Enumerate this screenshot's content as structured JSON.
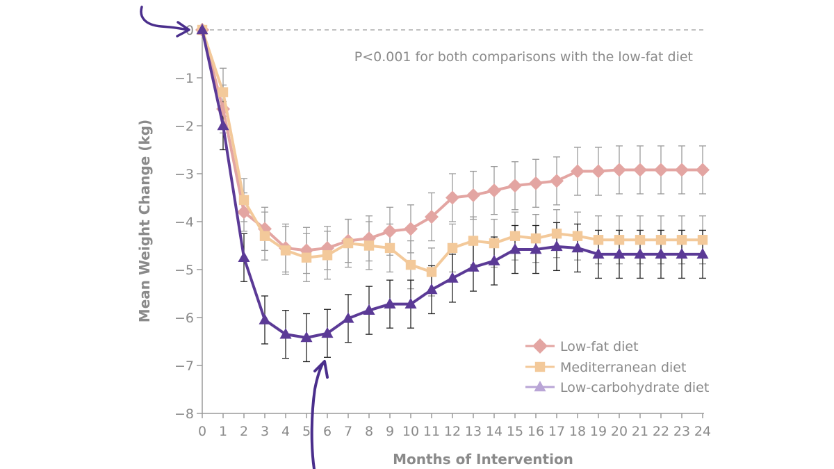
{
  "chart_data": {
    "type": "line",
    "title": "",
    "xlabel": "Months of Intervention",
    "ylabel": "Mean Weight Change (kg)",
    "annotation": "P<0.001 for both comparisons with the low-fat diet",
    "x": [
      0,
      1,
      2,
      3,
      4,
      5,
      6,
      7,
      8,
      9,
      10,
      11,
      12,
      13,
      14,
      15,
      16,
      17,
      18,
      19,
      20,
      21,
      22,
      23,
      24
    ],
    "xlim": [
      0,
      24
    ],
    "ylim": [
      -8,
      0
    ],
    "xticks": [
      "0",
      "1",
      "2",
      "3",
      "4",
      "5",
      "6",
      "7",
      "8",
      "9",
      "10",
      "11",
      "12",
      "13",
      "14",
      "15",
      "16",
      "17",
      "18",
      "19",
      "20",
      "21",
      "22",
      "23",
      "24"
    ],
    "yticks": [
      "0",
      "−1",
      "−2",
      "−3",
      "−4",
      "−5",
      "−6",
      "−7",
      "−8"
    ],
    "ytick_values": [
      0,
      -1,
      -2,
      -3,
      -4,
      -5,
      -6,
      -7,
      -8
    ],
    "reference_line": 0,
    "legend_position": "bottom-right",
    "series": [
      {
        "name": "Low-fat diet",
        "marker": "diamond",
        "color": "#e3a5a2",
        "values": [
          0,
          -1.65,
          -3.8,
          -4.15,
          -4.55,
          -4.6,
          -4.55,
          -4.4,
          -4.35,
          -4.2,
          -4.15,
          -3.9,
          -3.5,
          -3.45,
          -3.35,
          -3.25,
          -3.2,
          -3.15,
          -2.95,
          -2.95,
          -2.92,
          -2.92,
          -2.92,
          -2.92,
          -2.92
        ],
        "errors": [
          0.5,
          0.5,
          0.4,
          0.45,
          0.5,
          0.48,
          0.45,
          0.45,
          0.47,
          0.5,
          0.5,
          0.5,
          0.5,
          0.5,
          0.5,
          0.5,
          0.5,
          0.5,
          0.5,
          0.5,
          0.5,
          0.5,
          0.5,
          0.5,
          0.5
        ]
      },
      {
        "name": "Mediterranean diet",
        "marker": "square",
        "color": "#f3c99a",
        "values": [
          0,
          -1.3,
          -3.55,
          -4.3,
          -4.6,
          -4.75,
          -4.7,
          -4.45,
          -4.5,
          -4.55,
          -4.9,
          -5.05,
          -4.55,
          -4.4,
          -4.45,
          -4.3,
          -4.35,
          -4.25,
          -4.3,
          -4.38,
          -4.38,
          -4.38,
          -4.38,
          -4.38,
          -4.38
        ],
        "errors": [
          0.5,
          0.5,
          0.45,
          0.5,
          0.5,
          0.5,
          0.5,
          0.5,
          0.5,
          0.5,
          0.5,
          0.5,
          0.5,
          0.5,
          0.5,
          0.5,
          0.5,
          0.5,
          0.5,
          0.5,
          0.5,
          0.5,
          0.5,
          0.5,
          0.5
        ]
      },
      {
        "name": "Low-carbohydrate diet",
        "marker": "triangle",
        "color": "#5b3a96",
        "legend_color": "#b9a5d6",
        "values": [
          0,
          -2,
          -4.75,
          -6.05,
          -6.35,
          -6.42,
          -6.33,
          -6.02,
          -5.85,
          -5.72,
          -5.72,
          -5.42,
          -5.18,
          -4.95,
          -4.82,
          -4.58,
          -4.58,
          -4.52,
          -4.55,
          -4.68,
          -4.68,
          -4.68,
          -4.68,
          -4.68,
          -4.68
        ],
        "errors": [
          0.5,
          0.5,
          0.5,
          0.5,
          0.5,
          0.5,
          0.5,
          0.5,
          0.5,
          0.5,
          0.5,
          0.5,
          0.5,
          0.5,
          0.5,
          0.5,
          0.5,
          0.5,
          0.5,
          0.5,
          0.5,
          0.5,
          0.5,
          0.5,
          0.5
        ]
      }
    ]
  }
}
